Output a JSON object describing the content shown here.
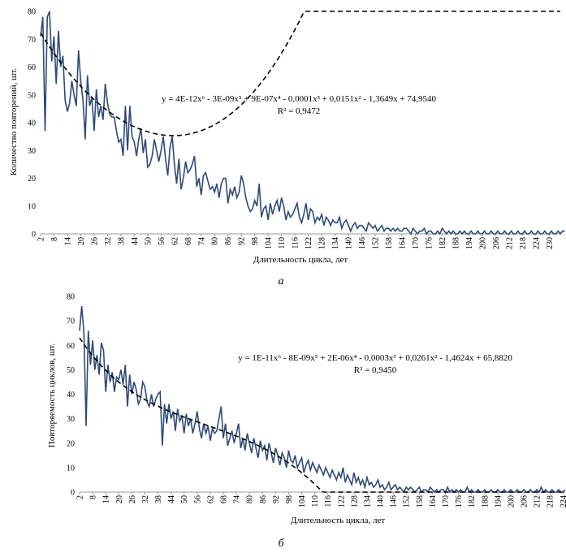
{
  "chart_data": [
    {
      "type": "line",
      "caption": "а",
      "xlabel": "Длительность цикла, лет",
      "ylabel": "Количество повторений, шт.",
      "ylim": [
        0,
        80
      ],
      "yticks": [
        0,
        10,
        20,
        30,
        40,
        50,
        60,
        70,
        80
      ],
      "xlim": [
        2,
        235
      ],
      "xticks": [
        2,
        8,
        14,
        20,
        26,
        32,
        38,
        44,
        50,
        56,
        62,
        68,
        74,
        80,
        86,
        92,
        98,
        104,
        110,
        116,
        122,
        128,
        134,
        140,
        146,
        152,
        158,
        164,
        170,
        176,
        182,
        188,
        194,
        200,
        206,
        212,
        218,
        224,
        230
      ],
      "equation": "y = 4E-12x⁶ - 3E-09x⁵ + 9E-07x⁴ - 0,0001x³ + 0,0151x² - 1,3649x + 74,9540",
      "r2": "R² = 0,9472",
      "trend": {
        "coeffs": [
          74.954,
          -1.3649,
          0.0151,
          -0.0001,
          9e-07,
          -3e-09,
          4e-12
        ],
        "style": "dashed"
      },
      "series": [
        {
          "color": "#2e4a7a",
          "x_start": 2,
          "x_step": 1,
          "values": [
            71,
            78,
            37,
            78,
            80,
            62,
            71,
            54,
            73,
            60,
            64,
            48,
            44,
            47,
            55,
            50,
            46,
            66,
            55,
            48,
            34,
            57,
            46,
            49,
            37,
            52,
            42,
            46,
            41,
            54,
            47,
            43,
            42,
            42,
            37,
            33,
            34,
            28,
            46,
            30,
            46,
            35,
            33,
            28,
            34,
            38,
            29,
            34,
            24,
            25,
            28,
            34,
            30,
            26,
            30,
            35,
            27,
            21,
            31,
            35,
            25,
            18,
            27,
            16,
            20,
            26,
            22,
            23,
            25,
            28,
            17,
            20,
            14,
            21,
            22,
            19,
            16,
            17,
            15,
            18,
            13,
            18,
            20,
            20,
            11,
            16,
            14,
            17,
            13,
            15,
            21,
            18,
            13,
            10,
            8,
            9,
            12,
            10,
            18,
            6,
            9,
            10,
            5,
            11,
            7,
            10,
            12,
            8,
            13,
            10,
            5,
            8,
            6,
            7,
            9,
            11,
            6,
            4,
            7,
            11,
            5,
            9,
            8,
            4,
            6,
            5,
            7,
            3,
            6,
            5,
            3,
            5,
            4,
            4,
            6,
            2,
            4,
            5,
            3,
            1,
            3,
            4,
            2,
            3,
            3,
            2,
            1,
            4,
            3,
            2,
            3,
            1,
            2,
            3,
            1,
            2,
            2,
            1,
            2,
            1,
            2,
            1,
            1,
            2,
            2,
            1,
            0,
            2,
            1,
            0,
            1,
            1,
            2,
            0,
            1,
            1,
            0,
            0,
            1,
            0,
            2,
            1,
            0,
            1,
            0,
            1,
            0,
            0,
            1,
            0,
            1,
            0,
            0,
            1,
            0,
            0,
            1,
            0,
            0,
            1,
            0,
            0,
            1,
            0,
            0,
            1,
            0,
            0,
            1,
            0,
            0,
            1,
            0,
            0,
            1,
            0,
            0,
            1,
            0,
            0,
            1,
            0,
            0,
            1,
            0,
            0,
            1,
            0,
            0,
            1,
            0,
            0,
            1,
            0,
            1,
            1
          ]
        }
      ]
    },
    {
      "type": "line",
      "caption": "б",
      "xlabel": "Длительность цикла, лет",
      "ylabel": "Повторяемость циклов, шт.",
      "ylim": [
        0,
        80
      ],
      "yticks": [
        0,
        10,
        20,
        30,
        40,
        50,
        60,
        70,
        80
      ],
      "xlim": [
        2,
        225
      ],
      "xticks": [
        2,
        8,
        14,
        20,
        26,
        32,
        38,
        44,
        50,
        56,
        62,
        68,
        74,
        80,
        86,
        92,
        98,
        104,
        110,
        116,
        122,
        128,
        134,
        140,
        146,
        152,
        158,
        164,
        170,
        176,
        182,
        188,
        194,
        200,
        206,
        212,
        218,
        224
      ],
      "equation": "y = 1E-11x⁶ - 8E-09x⁵ + 2E-06x⁴ - 0,0003x³ + 0,0261x² - 1,4624x + 65,8820",
      "r2": "R² = 0,9450",
      "trend": {
        "coeffs": [
          65.882,
          -1.4624,
          0.0261,
          -0.0003,
          2e-06,
          -8e-09,
          1e-11
        ],
        "style": "dashed"
      },
      "series": [
        {
          "color": "#2e4a7a",
          "x_start": 2,
          "x_step": 1,
          "values": [
            66,
            76,
            65,
            27,
            66,
            52,
            62,
            50,
            56,
            48,
            61,
            58,
            41,
            52,
            45,
            49,
            41,
            47,
            46,
            50,
            44,
            52,
            35,
            48,
            40,
            45,
            42,
            36,
            38,
            45,
            43,
            37,
            35,
            40,
            35,
            38,
            40,
            41,
            19,
            36,
            28,
            36,
            30,
            33,
            25,
            34,
            29,
            31,
            24,
            32,
            27,
            30,
            24,
            28,
            33,
            26,
            22,
            28,
            24,
            27,
            21,
            26,
            24,
            25,
            30,
            35,
            22,
            28,
            19,
            22,
            25,
            20,
            24,
            28,
            18,
            22,
            17,
            24,
            20,
            16,
            22,
            18,
            14,
            21,
            17,
            19,
            13,
            20,
            16,
            12,
            18,
            15,
            11,
            16,
            14,
            10,
            17,
            13,
            12,
            15,
            10,
            12,
            14,
            8,
            11,
            13,
            9,
            12,
            10,
            8,
            11,
            9,
            7,
            10,
            8,
            6,
            9,
            7,
            5,
            8,
            6,
            10,
            4,
            7,
            5,
            3,
            8,
            4,
            6,
            3,
            5,
            2,
            6,
            3,
            4,
            2,
            3,
            5,
            2,
            3,
            1,
            2,
            4,
            1,
            2,
            3,
            1,
            2,
            1,
            0,
            2,
            1,
            2,
            1,
            0,
            1,
            2,
            0,
            1,
            1,
            0,
            2,
            1,
            0,
            1,
            0,
            1,
            1,
            0,
            2,
            0,
            1,
            0,
            1,
            0,
            1,
            0,
            0,
            2,
            0,
            1,
            0,
            0,
            1,
            0,
            0,
            1,
            0,
            0,
            1,
            0,
            0,
            1,
            0,
            0,
            1,
            0,
            0,
            1,
            0,
            0,
            1,
            0,
            0,
            1,
            0,
            0,
            1,
            0,
            0,
            1,
            0,
            2,
            0,
            1,
            0,
            0,
            1,
            0,
            0,
            1,
            0,
            0,
            1
          ]
        }
      ]
    }
  ]
}
